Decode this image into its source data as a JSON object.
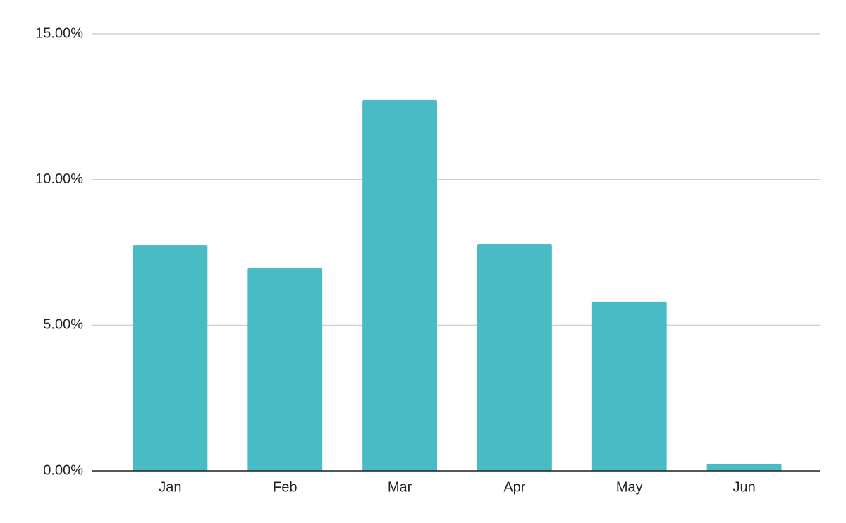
{
  "chart_data": {
    "type": "bar",
    "categories": [
      "Jan",
      "Feb",
      "Mar",
      "Apr",
      "May",
      "Jun"
    ],
    "values": [
      7.74,
      6.97,
      12.73,
      7.79,
      5.81,
      0.24
    ],
    "color": "#48bbc5",
    "ylim": [
      0,
      15
    ],
    "yticks": [
      {
        "value": 0,
        "label": "0.00%"
      },
      {
        "value": 5,
        "label": "5.00%"
      },
      {
        "value": 10,
        "label": "10.00%"
      },
      {
        "value": 15,
        "label": "15.00%"
      }
    ],
    "grid": true
  }
}
